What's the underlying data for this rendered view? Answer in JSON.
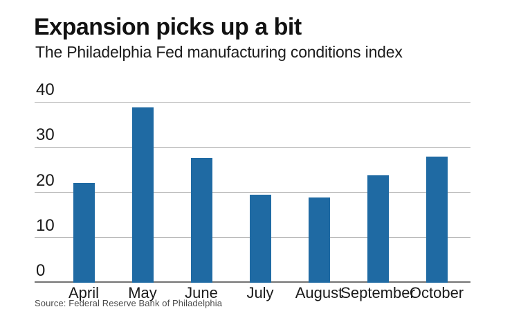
{
  "header": {
    "title": "Expansion picks up a bit",
    "subtitle": "The Philadelphia Fed manufacturing conditions index"
  },
  "footer": {
    "source": "Source: Federal Reserve Bank of Philadelphia"
  },
  "colors": {
    "bar": "#1f6aa3",
    "gridline": "#b0b0b0",
    "baseline": "#737373",
    "text": "#1a1a1a"
  },
  "chart_data": {
    "type": "bar",
    "title": "Expansion picks up a bit",
    "subtitle": "The Philadelphia Fed manufacturing conditions index",
    "categories": [
      "April",
      "May",
      "June",
      "July",
      "August",
      "September",
      "October"
    ],
    "values": [
      22.0,
      38.8,
      27.6,
      19.5,
      18.9,
      23.8,
      27.9
    ],
    "xlabel": "",
    "ylabel": "",
    "ylim": [
      0,
      40
    ],
    "yticks": [
      0,
      10,
      20,
      30,
      40
    ],
    "grid": true,
    "legend": false,
    "source": "Source: Federal Reserve Bank of Philadelphia"
  }
}
